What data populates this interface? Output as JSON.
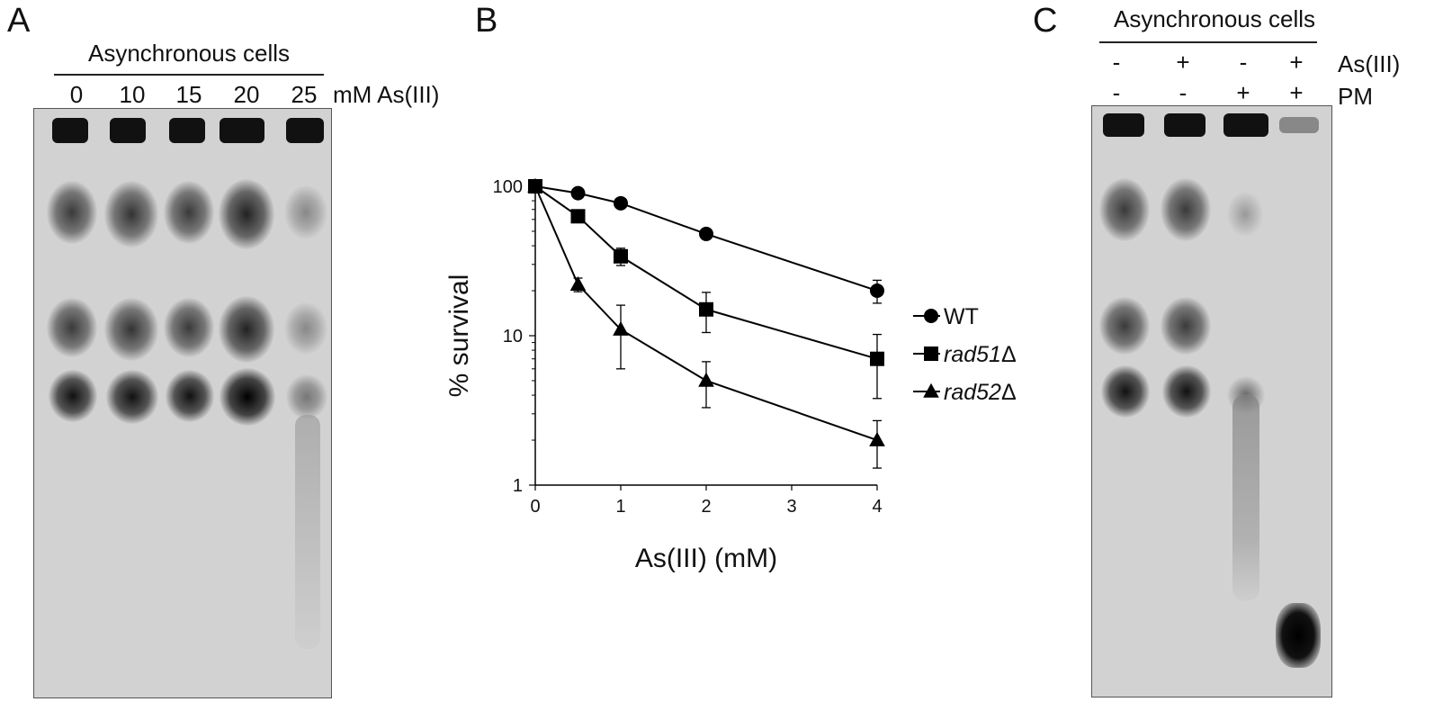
{
  "panelA": {
    "letter": "A",
    "title": "Asynchronous cells",
    "lanes": [
      "0",
      "10",
      "15",
      "20",
      "25"
    ],
    "unit": "mM As(III)"
  },
  "panelB": {
    "letter": "B"
  },
  "panelC": {
    "letter": "C",
    "title": "Asynchronous cells",
    "row1": {
      "label": "As(III)",
      "values": [
        "-",
        "+",
        "-",
        "+"
      ]
    },
    "row2": {
      "label": "PM",
      "values": [
        "-",
        "-",
        "+",
        "+"
      ]
    }
  },
  "chart_data": {
    "type": "line",
    "xlabel": "As(III) (mM)",
    "ylabel": "% survival",
    "yscale": "log",
    "ylim": [
      1,
      100
    ],
    "xlim": [
      0,
      4
    ],
    "x_ticks": [
      0,
      1,
      2,
      3,
      4
    ],
    "y_ticks": [
      1,
      10,
      100
    ],
    "legend_position": "right",
    "series": [
      {
        "name": "WT",
        "marker": "circle",
        "x": [
          0,
          0.5,
          1,
          2,
          4
        ],
        "y": [
          100,
          90,
          77,
          48,
          20
        ],
        "err": [
          0,
          0,
          0,
          0,
          3.5
        ]
      },
      {
        "name": "rad51Δ",
        "marker": "square",
        "x": [
          0,
          0.5,
          1,
          2,
          4
        ],
        "y": [
          100,
          63,
          34,
          15,
          7
        ],
        "err": [
          0,
          0,
          4.5,
          4.5,
          3.2
        ]
      },
      {
        "name": "rad52Δ",
        "marker": "triangle",
        "x": [
          0,
          0.5,
          1,
          2,
          4
        ],
        "y": [
          100,
          22,
          11,
          5,
          2
        ],
        "err": [
          0,
          2.3,
          5,
          1.7,
          0.7
        ]
      }
    ]
  }
}
